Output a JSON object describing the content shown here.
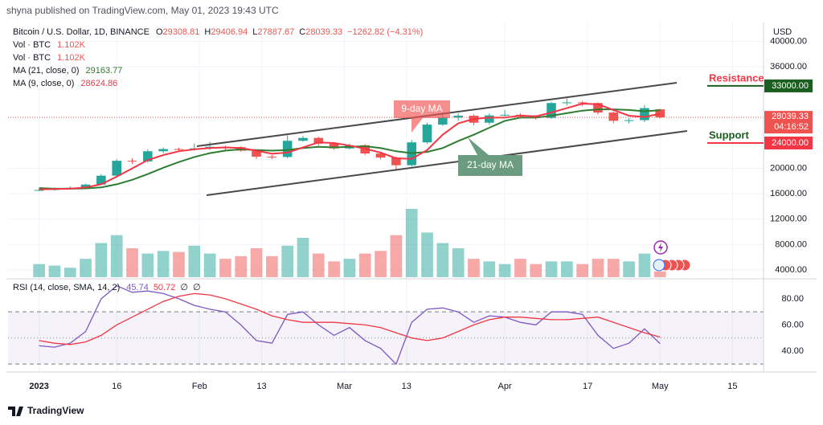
{
  "header": "shyna published on TradingView.com, May 01, 2023 19:43 UTC",
  "footer": "TradingView",
  "chart_data": [
    {
      "type": "candlestick",
      "title": "Bitcoin / U.S. Dollar, 1D, BINANCE",
      "ohlc_labels": [
        "O",
        "H",
        "L",
        "C"
      ],
      "change": "−1262.82 (−4.31%)",
      "currency": "USD",
      "x": [
        "2023-01-01",
        "2023-01-04",
        "2023-01-07",
        "2023-01-10",
        "2023-01-13",
        "2023-01-16",
        "2023-01-19",
        "2023-01-22",
        "2023-01-25",
        "2023-01-28",
        "2023-01-31",
        "2023-02-03",
        "2023-02-06",
        "2023-02-09",
        "2023-02-12",
        "2023-02-15",
        "2023-02-18",
        "2023-02-21",
        "2023-02-24",
        "2023-02-27",
        "2023-03-02",
        "2023-03-05",
        "2023-03-08",
        "2023-03-11",
        "2023-03-14",
        "2023-03-17",
        "2023-03-20",
        "2023-03-23",
        "2023-03-26",
        "2023-03-29",
        "2023-04-01",
        "2023-04-04",
        "2023-04-07",
        "2023-04-10",
        "2023-04-13",
        "2023-04-16",
        "2023-04-19",
        "2023-04-22",
        "2023-04-25",
        "2023-04-28",
        "2023-05-01"
      ],
      "open": [
        16550,
        16600,
        16850,
        16950,
        17450,
        18850,
        21200,
        21100,
        22700,
        23050,
        23000,
        23150,
        23400,
        23350,
        22800,
        21850,
        21800,
        24350,
        24800,
        23900,
        23150,
        23650,
        22350,
        21700,
        20500,
        24100,
        26900,
        28000,
        28300,
        27200,
        28350,
        28450,
        28150,
        27950,
        30300,
        30400,
        30300,
        28800,
        27500,
        27600,
        29308.81
      ],
      "high": [
        16780,
        17000,
        17150,
        17600,
        19100,
        21450,
        21600,
        23000,
        23300,
        23300,
        23900,
        24200,
        23600,
        23500,
        23000,
        22100,
        25200,
        25100,
        25000,
        24100,
        23900,
        23800,
        22500,
        21900,
        24500,
        27200,
        28800,
        28700,
        28500,
        28650,
        29200,
        28700,
        28400,
        30500,
        31000,
        30600,
        30400,
        29000,
        27900,
        30000,
        29406.94
      ],
      "low": [
        16450,
        16500,
        16700,
        16850,
        17350,
        18700,
        20700,
        20900,
        22400,
        22700,
        22800,
        22900,
        22900,
        22600,
        21500,
        21450,
        21600,
        24200,
        23600,
        22900,
        23000,
        22100,
        21400,
        19600,
        20300,
        23900,
        26700,
        27500,
        26800,
        26900,
        28200,
        27900,
        27700,
        27800,
        29900,
        29800,
        28500,
        27100,
        27100,
        27300,
        27887.67
      ],
      "close": [
        16600,
        16850,
        16950,
        17450,
        18850,
        21200,
        21100,
        22700,
        23050,
        23000,
        23150,
        23400,
        23350,
        22800,
        21850,
        21800,
        24350,
        24800,
        23900,
        23150,
        23650,
        22350,
        21700,
        20500,
        24100,
        26900,
        28000,
        28300,
        27200,
        28350,
        28450,
        28150,
        27950,
        30300,
        30400,
        30300,
        28800,
        27500,
        27600,
        29500,
        28039.33
      ],
      "up_color": "#26a69a",
      "down_color": "#ef5350",
      "xlim": [
        "2022-12-26",
        "2023-05-21"
      ],
      "xticks": [
        {
          "value": "2023-01-01",
          "label": "2023"
        },
        {
          "value": "2023-01-16",
          "label": "16"
        },
        {
          "value": "2023-02-01",
          "label": "Feb"
        },
        {
          "value": "2023-02-13",
          "label": "13"
        },
        {
          "value": "2023-03-01",
          "label": "Mar"
        },
        {
          "value": "2023-03-13",
          "label": "13"
        },
        {
          "value": "2023-04-01",
          "label": "Apr"
        },
        {
          "value": "2023-04-17",
          "label": "17"
        },
        {
          "value": "2023-05-01",
          "label": "May"
        },
        {
          "value": "2023-05-15",
          "label": "15"
        }
      ],
      "ylim": [
        2860,
        42990
      ],
      "yticks": [
        {
          "value": 4000,
          "label": "4000.00"
        },
        {
          "value": 8000,
          "label": "8000.00"
        },
        {
          "value": 12000,
          "label": "12000.00"
        },
        {
          "value": 16000,
          "label": "16000.00"
        },
        {
          "value": 20000,
          "label": "20000.00"
        },
        {
          "value": 36000,
          "label": "36000.00"
        },
        {
          "value": 40000,
          "label": "40000.00"
        }
      ],
      "grid": true,
      "series": [
        {
          "name": "MA (21, close, 0)",
          "color": "#2e7d32",
          "values": [
            16900,
            16800,
            16800,
            16850,
            17000,
            17500,
            18200,
            19100,
            20100,
            21000,
            21800,
            22400,
            22800,
            23000,
            22900,
            22800,
            22900,
            23200,
            23400,
            23300,
            23400,
            23500,
            23200,
            22700,
            22400,
            22600,
            23200,
            24300,
            25300,
            26400,
            27500,
            28000,
            28000,
            28300,
            28700,
            29100,
            29300,
            29300,
            29200,
            29000,
            29163.77
          ]
        },
        {
          "name": "MA (9, close, 0)",
          "color": "#f23645",
          "values": [
            16700,
            16750,
            16800,
            17000,
            17500,
            18700,
            20000,
            21300,
            22100,
            22700,
            23000,
            23200,
            23300,
            23200,
            22800,
            22300,
            22500,
            23300,
            24100,
            24000,
            23600,
            23100,
            22500,
            21600,
            21500,
            22900,
            25300,
            27100,
            27800,
            28000,
            28000,
            28300,
            28200,
            28800,
            29500,
            30200,
            30100,
            29200,
            28300,
            28100,
            28624.86
          ]
        }
      ],
      "volume": {
        "name": "Vol · BTC",
        "last_label": "1.102K",
        "values": [
          2500,
          2200,
          1800,
          3500,
          6500,
          8000,
          5500,
          4500,
          5000,
          4800,
          6000,
          4500,
          3500,
          4000,
          5500,
          4000,
          6000,
          7500,
          4500,
          3000,
          3500,
          4500,
          5000,
          8000,
          13000,
          8500,
          6500,
          5500,
          3500,
          3000,
          2500,
          3500,
          2500,
          3000,
          3000,
          2500,
          3500,
          3500,
          3000,
          4500,
          1102
        ]
      },
      "levels": [
        {
          "name": "Resistance",
          "value": 33000,
          "label": "33000.00",
          "color": "#1b5e20",
          "text_color": "#f23645"
        },
        {
          "name": "Support",
          "value": 24000,
          "label": "24000.00",
          "color": "#f23645",
          "text_color": "#1b5e20"
        }
      ],
      "countdown": "04:16:52",
      "annotations": [
        "9-day MA",
        "21-day MA"
      ]
    },
    {
      "type": "line",
      "title": "RSI (14, close, SMA, 14, 2)",
      "extra": [
        "∅",
        "∅"
      ],
      "ylim": [
        25.8,
        93.5
      ],
      "yticks": [
        {
          "value": 40,
          "label": "40.00"
        },
        {
          "value": 60,
          "label": "60.00"
        },
        {
          "value": 80,
          "label": "80.00"
        }
      ],
      "band": [
        30,
        70
      ],
      "midline": 50,
      "series": [
        {
          "name": "RSI",
          "color": "#7e57c2",
          "values": [
            44,
            43,
            46,
            55,
            80,
            90,
            85,
            86,
            84,
            80,
            75,
            72,
            70,
            60,
            48,
            46,
            68,
            70,
            60,
            52,
            58,
            48,
            42,
            30,
            62,
            72,
            73,
            70,
            62,
            67,
            66,
            62,
            60,
            70,
            70,
            68,
            52,
            42,
            46,
            57,
            45.74
          ]
        },
        {
          "name": "SMA",
          "color": "#f23645",
          "values": [
            48,
            46,
            45,
            47,
            52,
            60,
            66,
            72,
            78,
            82,
            84,
            83,
            80,
            76,
            72,
            67,
            64,
            62,
            62,
            62,
            61,
            60,
            58,
            54,
            50,
            48,
            50,
            55,
            60,
            64,
            66,
            66,
            65,
            64,
            64,
            65,
            66,
            62,
            58,
            54,
            50.72
          ]
        }
      ]
    }
  ]
}
